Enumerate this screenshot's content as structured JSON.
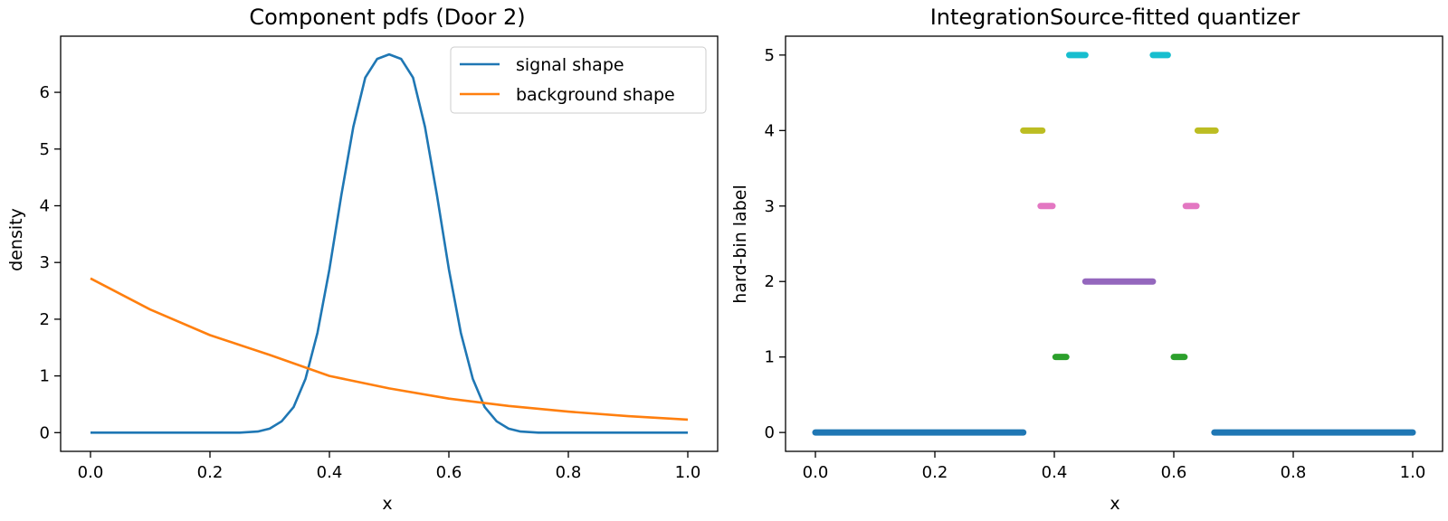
{
  "chart_data": [
    {
      "type": "line",
      "title": "Component pdfs (Door 2)",
      "xlabel": "x",
      "ylabel": "density",
      "xlim": [
        -0.05,
        1.05
      ],
      "ylim": [
        -0.33,
        6.99
      ],
      "xticks": [
        "0.0",
        "0.2",
        "0.4",
        "0.6",
        "0.8",
        "1.0"
      ],
      "yticks": [
        "0",
        "1",
        "2",
        "3",
        "4",
        "5",
        "6"
      ],
      "grid": false,
      "legend": "top-right",
      "series": [
        {
          "name": "signal shape",
          "color": "#1f77b4",
          "x": [
            0.0,
            0.2,
            0.25,
            0.28,
            0.3,
            0.32,
            0.34,
            0.36,
            0.38,
            0.4,
            0.42,
            0.44,
            0.46,
            0.48,
            0.5,
            0.52,
            0.54,
            0.56,
            0.58,
            0.6,
            0.62,
            0.64,
            0.66,
            0.68,
            0.7,
            0.72,
            0.75,
            0.8,
            1.0
          ],
          "y": [
            0.0,
            0.0,
            0.0,
            0.02,
            0.07,
            0.2,
            0.45,
            0.95,
            1.76,
            2.88,
            4.19,
            5.39,
            6.26,
            6.59,
            6.67,
            6.59,
            6.26,
            5.39,
            4.19,
            2.88,
            1.76,
            0.95,
            0.45,
            0.2,
            0.07,
            0.02,
            0.0,
            0.0,
            0.0
          ]
        },
        {
          "name": "background shape",
          "color": "#ff7f0e",
          "x": [
            0.0,
            0.1,
            0.2,
            0.3,
            0.4,
            0.5,
            0.6,
            0.7,
            0.8,
            0.9,
            1.0
          ],
          "y": [
            2.72,
            2.17,
            1.72,
            1.37,
            1.0,
            0.78,
            0.6,
            0.47,
            0.37,
            0.29,
            0.23
          ]
        }
      ]
    },
    {
      "type": "scatter",
      "title": "IntegrationSource-fitted quantizer",
      "xlabel": "x",
      "ylabel": "hard-bin label",
      "xlim": [
        -0.05,
        1.05
      ],
      "ylim": [
        -0.25,
        5.25
      ],
      "xticks": [
        "0.0",
        "0.2",
        "0.4",
        "0.6",
        "0.8",
        "1.0"
      ],
      "yticks": [
        "0",
        "1",
        "2",
        "3",
        "4",
        "5"
      ],
      "grid": false,
      "segments": [
        {
          "label": 0,
          "x0": 0.0,
          "x1": 0.348,
          "color": "#1f77b4"
        },
        {
          "label": 0,
          "x0": 0.668,
          "x1": 1.0,
          "color": "#1f77b4"
        },
        {
          "label": 1,
          "x0": 0.402,
          "x1": 0.42,
          "color": "#2ca02c"
        },
        {
          "label": 1,
          "x0": 0.6,
          "x1": 0.618,
          "color": "#2ca02c"
        },
        {
          "label": 2,
          "x0": 0.452,
          "x1": 0.565,
          "color": "#9467bd"
        },
        {
          "label": 3,
          "x0": 0.377,
          "x1": 0.397,
          "color": "#e377c2"
        },
        {
          "label": 3,
          "x0": 0.62,
          "x1": 0.638,
          "color": "#e377c2"
        },
        {
          "label": 4,
          "x0": 0.348,
          "x1": 0.38,
          "color": "#bcbd22"
        },
        {
          "label": 4,
          "x0": 0.64,
          "x1": 0.67,
          "color": "#bcbd22"
        },
        {
          "label": 5,
          "x0": 0.425,
          "x1": 0.452,
          "color": "#17becf"
        },
        {
          "label": 5,
          "x0": 0.565,
          "x1": 0.59,
          "color": "#17becf"
        }
      ]
    }
  ]
}
